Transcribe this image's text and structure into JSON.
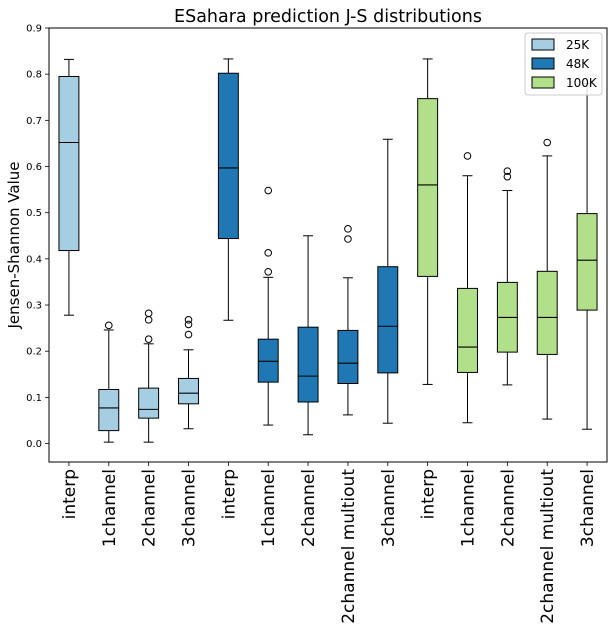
{
  "chart_data": {
    "type": "boxplot",
    "title": "ESahara prediction J-S distributions",
    "xlabel": "",
    "ylabel": "Jensen-Shannon Value",
    "ylim": [
      -0.04,
      0.9
    ],
    "yticks": [
      0.0,
      0.1,
      0.2,
      0.3,
      0.4,
      0.5,
      0.6,
      0.7,
      0.8,
      0.9
    ],
    "ytick_labels": [
      "0.0",
      "0.1",
      "0.2",
      "0.3",
      "0.4",
      "0.5",
      "0.6",
      "0.7",
      "0.8",
      "0.9"
    ],
    "grid": false,
    "legend_position": "top-right",
    "categories": [
      "interp",
      "1channel",
      "2channel",
      "3channel",
      "interp",
      "1channel",
      "2channel",
      "2channel multiout",
      "3channel",
      "interp",
      "1channel",
      "2channel",
      "2channel multiout",
      "3channel"
    ],
    "series": [
      {
        "name": "25K",
        "color": "#a6cee3"
      },
      {
        "name": "48K",
        "color": "#1f78b4"
      },
      {
        "name": "100K",
        "color": "#b2df8a"
      }
    ],
    "boxes": [
      {
        "series": 0,
        "whislo": 0.278,
        "q1": 0.418,
        "med": 0.652,
        "q3": 0.795,
        "whishi": 0.832,
        "fliers": []
      },
      {
        "series": 0,
        "whislo": 0.003,
        "q1": 0.028,
        "med": 0.077,
        "q3": 0.117,
        "whishi": 0.246,
        "fliers": [
          0.256
        ]
      },
      {
        "series": 0,
        "whislo": 0.003,
        "q1": 0.055,
        "med": 0.074,
        "q3": 0.12,
        "whishi": 0.216,
        "fliers": [
          0.226,
          0.268,
          0.282
        ]
      },
      {
        "series": 0,
        "whislo": 0.032,
        "q1": 0.086,
        "med": 0.109,
        "q3": 0.141,
        "whishi": 0.203,
        "fliers": [
          0.236,
          0.258,
          0.268
        ]
      },
      {
        "series": 1,
        "whislo": 0.267,
        "q1": 0.444,
        "med": 0.597,
        "q3": 0.802,
        "whishi": 0.833,
        "fliers": []
      },
      {
        "series": 1,
        "whislo": 0.04,
        "q1": 0.133,
        "med": 0.178,
        "q3": 0.226,
        "whishi": 0.36,
        "fliers": [
          0.372,
          0.413,
          0.548
        ]
      },
      {
        "series": 1,
        "whislo": 0.019,
        "q1": 0.09,
        "med": 0.146,
        "q3": 0.252,
        "whishi": 0.45,
        "fliers": []
      },
      {
        "series": 1,
        "whislo": 0.062,
        "q1": 0.13,
        "med": 0.174,
        "q3": 0.245,
        "whishi": 0.359,
        "fliers": [
          0.443,
          0.465
        ]
      },
      {
        "series": 1,
        "whislo": 0.044,
        "q1": 0.153,
        "med": 0.254,
        "q3": 0.383,
        "whishi": 0.659,
        "fliers": []
      },
      {
        "series": 2,
        "whislo": 0.128,
        "q1": 0.362,
        "med": 0.56,
        "q3": 0.747,
        "whishi": 0.833,
        "fliers": []
      },
      {
        "series": 2,
        "whislo": 0.045,
        "q1": 0.154,
        "med": 0.209,
        "q3": 0.336,
        "whishi": 0.58,
        "fliers": [
          0.623
        ]
      },
      {
        "series": 2,
        "whislo": 0.127,
        "q1": 0.198,
        "med": 0.273,
        "q3": 0.349,
        "whishi": 0.548,
        "fliers": [
          0.578,
          0.59
        ]
      },
      {
        "series": 2,
        "whislo": 0.053,
        "q1": 0.193,
        "med": 0.273,
        "q3": 0.373,
        "whishi": 0.623,
        "fliers": [
          0.652
        ]
      },
      {
        "series": 2,
        "whislo": 0.031,
        "q1": 0.289,
        "med": 0.397,
        "q3": 0.498,
        "whishi": 0.78,
        "fliers": []
      }
    ]
  }
}
